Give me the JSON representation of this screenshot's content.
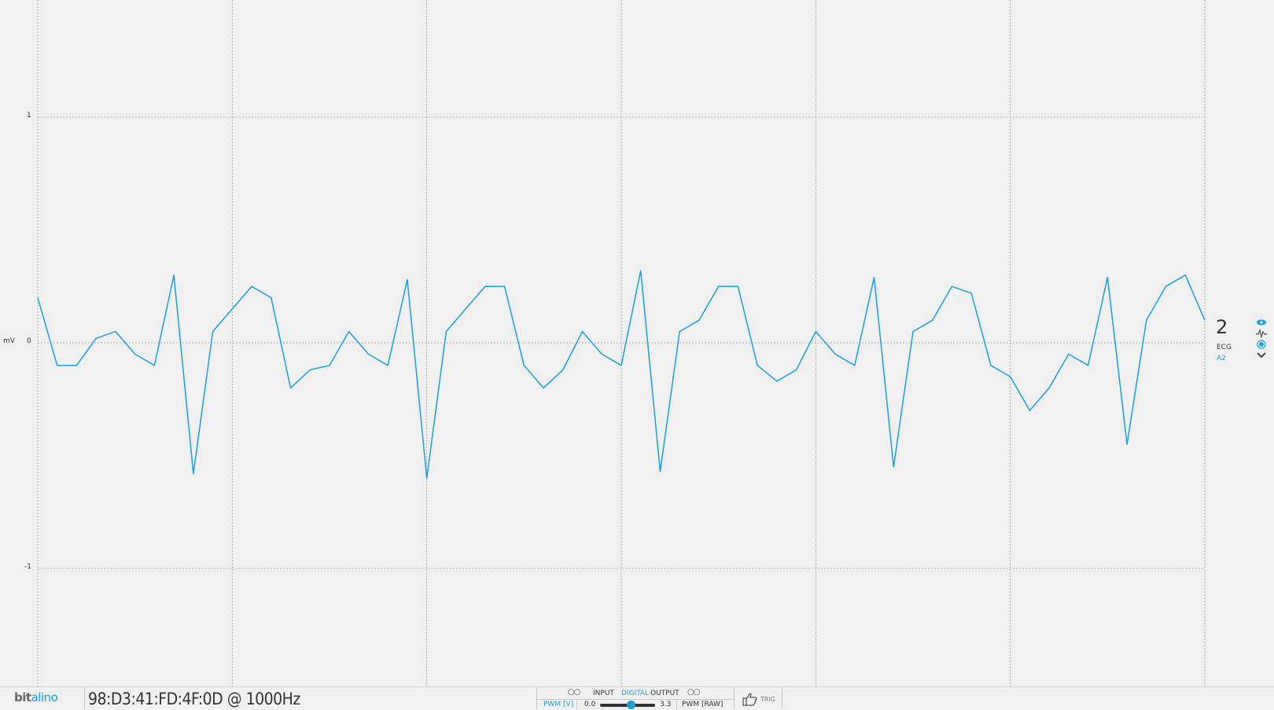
{
  "plot": {
    "y_unit": "mV",
    "y_ticks": [
      {
        "label": "1",
        "value": 1
      },
      {
        "label": "0",
        "value": 0
      },
      {
        "label": "-1",
        "value": -1
      }
    ],
    "line_color": "#1a9fd8",
    "grid": true
  },
  "channel": {
    "number": "2",
    "type": "ECG",
    "port": "A2",
    "icons": [
      "eye-icon",
      "wave-icon",
      "record-icon",
      "chevron-down-icon"
    ]
  },
  "footer": {
    "logo_part1": "bit",
    "logo_part2": "alino",
    "device_info": "98:D3:41:FD:4F:0D @ 1000Hz",
    "io": {
      "input_label": "INPUT",
      "digital_label": "DIGITAL",
      "output_label": "OUTPUT",
      "pwm_v_label": "PWM [V]",
      "pwm_min": "0.0",
      "pwm_max": "3.3",
      "pwm_raw_label": "PWM [RAW]"
    },
    "trig_label": "TRIG"
  },
  "chart_data": {
    "type": "line",
    "ylim": [
      -1.5,
      1.5
    ],
    "ylabel": "mV",
    "grid": true,
    "x": [
      0,
      0.1,
      0.2,
      0.3,
      0.4,
      0.5,
      0.6,
      0.7,
      0.8,
      0.9,
      1.0,
      1.1,
      1.2,
      1.3,
      1.4,
      1.5,
      1.6,
      1.7,
      1.8,
      1.9,
      2.0,
      2.1,
      2.2,
      2.3,
      2.4,
      2.5,
      2.6,
      2.7,
      2.8,
      2.9,
      3.0,
      3.1,
      3.2,
      3.3,
      3.4,
      3.5,
      3.6,
      3.7,
      3.8,
      3.9,
      4.0,
      4.1,
      4.2,
      4.3,
      4.4,
      4.5,
      4.6,
      4.7,
      4.8,
      4.9,
      5.0,
      5.1,
      5.2,
      5.3,
      5.4,
      5.5,
      5.6,
      5.7,
      5.8,
      5.9,
      6.0
    ],
    "series": [
      {
        "values": [
          0.2,
          -0.1,
          -0.1,
          0.02,
          0.05,
          -0.05,
          -0.1,
          0.3,
          -0.58,
          0.05,
          0.15,
          0.25,
          0.2,
          -0.2,
          -0.12,
          -0.1,
          0.05,
          -0.05,
          -0.1,
          0.28,
          -0.6,
          0.05,
          0.15,
          0.25,
          0.25,
          -0.1,
          -0.2,
          -0.12,
          0.05,
          -0.05,
          -0.1,
          0.32,
          -0.57,
          0.05,
          0.1,
          0.25,
          0.25,
          -0.1,
          -0.17,
          -0.12,
          0.05,
          -0.05,
          -0.1,
          0.29,
          -0.55,
          0.05,
          0.1,
          0.25,
          0.22,
          -0.1,
          -0.15,
          -0.3,
          -0.2,
          -0.05,
          -0.1,
          0.29,
          -0.45,
          0.1,
          0.25,
          0.3,
          0.1
        ]
      }
    ]
  }
}
